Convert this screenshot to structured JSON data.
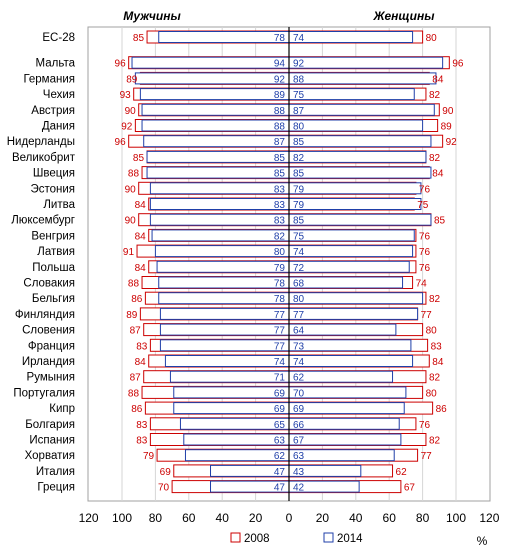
{
  "chart_data": {
    "type": "bar",
    "orientation": "horizontal",
    "layout": "butterfly",
    "left_panel_title": "Мужчины",
    "right_panel_title": "Женщины",
    "unit_label": "%",
    "xlim": [
      0,
      120
    ],
    "x_ticks": [
      "120",
      "100",
      "80",
      "60",
      "40",
      "20",
      "0",
      "20",
      "40",
      "60",
      "80",
      "100",
      "120"
    ],
    "categories": [
      "ЕС-28",
      "Мальта",
      "Германия",
      "Чехия",
      "Австрия",
      "Дания",
      "Нидерланды",
      "Великобрит",
      "Швеция",
      "Эстония",
      "Литва",
      "Люксембург",
      "Венгрия",
      "Латвия",
      "Польша",
      "Словакия",
      "Бельгия",
      "Финляндия",
      "Словения",
      "Франция",
      "Ирландия",
      "Румыния",
      "Португалия",
      "Кипр",
      "Болгария",
      "Испания",
      "Хорватия",
      "Италия",
      "Греция"
    ],
    "series": [
      {
        "name": "2008",
        "side": "Мужчины",
        "values": [
          85,
          96,
          89,
          93,
          90,
          92,
          96,
          85,
          88,
          90,
          84,
          90,
          84,
          91,
          84,
          88,
          86,
          89,
          87,
          83,
          84,
          87,
          88,
          86,
          83,
          83,
          79,
          69,
          70
        ]
      },
      {
        "name": "2014",
        "side": "Мужчины",
        "values": [
          78,
          94,
          92,
          89,
          88,
          88,
          87,
          85,
          85,
          83,
          83,
          83,
          82,
          80,
          79,
          78,
          78,
          77,
          77,
          77,
          74,
          71,
          69,
          69,
          65,
          63,
          62,
          47,
          47
        ]
      },
      {
        "name": "2008",
        "side": "Женщины",
        "values": [
          80,
          96,
          84,
          82,
          90,
          89,
          92,
          82,
          84,
          76,
          75,
          85,
          76,
          76,
          76,
          74,
          82,
          77,
          80,
          83,
          84,
          82,
          80,
          86,
          76,
          82,
          77,
          62,
          67
        ]
      },
      {
        "name": "2014",
        "side": "Женщины",
        "values": [
          74,
          92,
          88,
          75,
          87,
          80,
          85,
          82,
          85,
          79,
          79,
          85,
          75,
          74,
          72,
          68,
          80,
          77,
          64,
          73,
          74,
          62,
          70,
          69,
          66,
          67,
          63,
          43,
          42
        ]
      }
    ],
    "legend": {
      "position": "bottom",
      "items": [
        "2008",
        "2014"
      ]
    },
    "colors": {
      "2008": "#cc0000",
      "2014": "#1f3fa8"
    },
    "grid": true
  }
}
